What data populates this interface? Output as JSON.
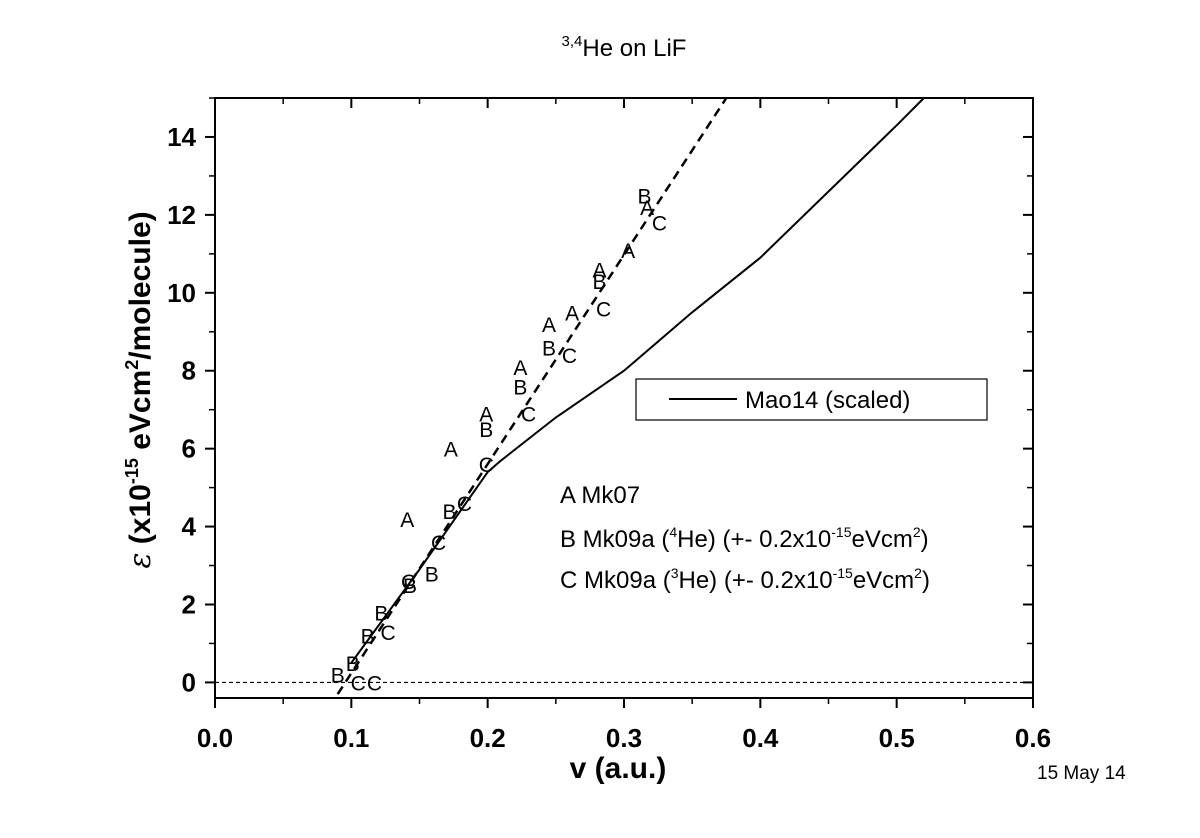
{
  "chart_data": {
    "type": "scatter",
    "title": {
      "sup": "3,4",
      "main": "He on LiF"
    },
    "xlabel": "v (a.u.)",
    "ylabel": {
      "symbol": "ε",
      "pre": " (x10",
      "exp": "-15",
      "mid": " eVcm",
      "exp2": "2",
      "post": "/molecule)"
    },
    "xlim": [
      0.0,
      0.6
    ],
    "ylim": [
      -0.4,
      15
    ],
    "xticks": [
      "0.0",
      "0.1",
      "0.2",
      "0.3",
      "0.4",
      "0.5",
      "0.6"
    ],
    "yticks": [
      "0",
      "2",
      "4",
      "6",
      "8",
      "10",
      "12",
      "14"
    ],
    "date": "15 May 14",
    "zero_line": 0,
    "lines": [
      {
        "name": "Mao14 (scaled)",
        "style": "solid",
        "x": [
          0.1,
          0.15,
          0.2,
          0.21,
          0.25,
          0.3,
          0.35,
          0.4,
          0.45,
          0.5,
          0.52
        ],
        "y": [
          0.5,
          2.9,
          5.4,
          5.7,
          6.8,
          8.0,
          9.5,
          10.9,
          12.6,
          14.3,
          15.0
        ]
      },
      {
        "name": "",
        "style": "dashed",
        "x": [
          0.09,
          0.375
        ],
        "y": [
          -0.3,
          15.0
        ]
      }
    ],
    "series": [
      {
        "name": "A Mk07",
        "marker": "A",
        "x": [
          0.141,
          0.173,
          0.199,
          0.224,
          0.245,
          0.262,
          0.282,
          0.303,
          0.317
        ],
        "y": [
          4.2,
          6.0,
          6.9,
          8.1,
          9.2,
          9.5,
          10.6,
          11.1,
          12.2
        ]
      },
      {
        "name": "B Mk09a",
        "marker": "B",
        "x": [
          0.09,
          0.101,
          0.112,
          0.122,
          0.143,
          0.159,
          0.172,
          0.199,
          0.224,
          0.245,
          0.282,
          0.315
        ],
        "y": [
          0.2,
          0.5,
          1.2,
          1.8,
          2.5,
          2.8,
          4.4,
          6.5,
          7.6,
          8.6,
          10.3,
          12.5
        ]
      },
      {
        "name": "C Mk09a",
        "marker": "C",
        "x": [
          0.105,
          0.117,
          0.127,
          0.142,
          0.164,
          0.183,
          0.199,
          0.23,
          0.26,
          0.285,
          0.326
        ],
        "y": [
          0.0,
          0.0,
          1.3,
          2.6,
          3.6,
          4.6,
          5.6,
          6.9,
          8.4,
          9.6,
          11.8
        ]
      }
    ],
    "legend_box": {
      "label": "Mao14 (scaled)"
    },
    "annotations": [
      {
        "id": "a",
        "text": "A Mk07"
      },
      {
        "id": "b",
        "pre": "B Mk09a (",
        "sup1": "4",
        "mid": "He) (+- 0.2x10",
        "sup2": "-15",
        "mid2": "eVcm",
        "sup3": "2",
        "post": ")"
      },
      {
        "id": "c",
        "pre": "C Mk09a (",
        "sup1": "3",
        "mid": "He) (+- 0.2x10",
        "sup2": "-15",
        "mid2": "eVcm",
        "sup3": "2",
        "post": ")"
      }
    ]
  }
}
